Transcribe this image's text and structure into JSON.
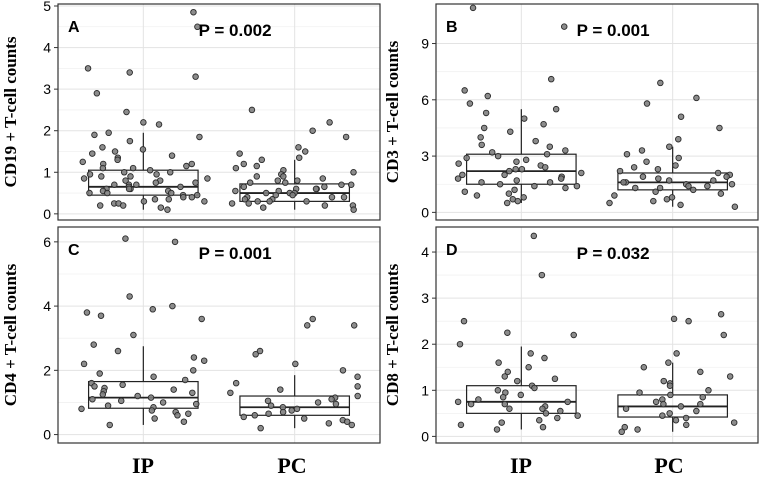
{
  "chart_data": [
    {
      "type": "box",
      "panel_label": "A",
      "ylabel": "CD19 + T-cell counts",
      "p_value": "P = 0.002",
      "categories": [
        "IP",
        "PC"
      ],
      "ylim": [
        -0.1,
        5.0
      ],
      "yticks": [
        0,
        1,
        2,
        3,
        4,
        5
      ],
      "tick_labels": [
        "0",
        "1",
        "2",
        "3",
        "4",
        "5"
      ],
      "boxes": [
        {
          "group": "IP",
          "whisker_low": 0.1,
          "q1": 0.45,
          "median": 0.65,
          "q3": 1.05,
          "whisker_high": 1.95
        },
        {
          "group": "PC",
          "whisker_low": 0.1,
          "q1": 0.3,
          "median": 0.5,
          "q3": 0.72,
          "whisker_high": 1.3
        }
      ],
      "points": [
        {
          "group": "IP",
          "values": [
            4.85,
            4.5,
            3.5,
            3.4,
            3.3,
            2.9,
            2.45,
            2.2,
            2.15,
            1.95,
            1.9,
            1.85,
            1.75,
            1.6,
            1.55,
            1.5,
            1.45,
            1.4,
            1.35,
            1.3,
            1.25,
            1.2,
            1.2,
            1.15,
            1.1,
            1.1,
            1.05,
            1.0,
            1.0,
            0.95,
            0.95,
            0.9,
            0.9,
            0.85,
            0.85,
            0.8,
            0.8,
            0.75,
            0.75,
            0.7,
            0.7,
            0.7,
            0.65,
            0.65,
            0.6,
            0.6,
            0.6,
            0.55,
            0.55,
            0.5,
            0.5,
            0.5,
            0.45,
            0.45,
            0.4,
            0.4,
            0.35,
            0.35,
            0.3,
            0.3,
            0.25,
            0.25,
            0.2,
            0.2,
            0.15,
            0.1
          ]
        },
        {
          "group": "PC",
          "values": [
            2.5,
            2.2,
            2.0,
            1.85,
            1.6,
            1.5,
            1.45,
            1.35,
            1.3,
            1.2,
            1.15,
            1.1,
            1.05,
            1.0,
            0.95,
            0.9,
            0.9,
            0.85,
            0.8,
            0.8,
            0.75,
            0.75,
            0.7,
            0.7,
            0.65,
            0.65,
            0.6,
            0.6,
            0.6,
            0.55,
            0.55,
            0.5,
            0.5,
            0.5,
            0.45,
            0.45,
            0.4,
            0.4,
            0.4,
            0.35,
            0.35,
            0.3,
            0.3,
            0.3,
            0.25,
            0.25,
            0.2,
            0.2,
            0.15,
            0.1
          ]
        }
      ]
    },
    {
      "type": "box",
      "panel_label": "B",
      "ylabel": "CD3 + T-cell counts",
      "p_value": "P = 0.001",
      "categories": [
        "IP",
        "PC"
      ],
      "ylim": [
        -0.3,
        11.0
      ],
      "yticks": [
        0,
        3,
        6,
        9
      ],
      "tick_labels": [
        "0",
        "3",
        "6",
        "9"
      ],
      "boxes": [
        {
          "group": "IP",
          "whisker_low": 0.5,
          "q1": 1.5,
          "median": 2.2,
          "q3": 3.1,
          "whisker_high": 5.5
        },
        {
          "group": "PC",
          "whisker_low": 0.3,
          "q1": 1.2,
          "median": 1.6,
          "q3": 2.1,
          "whisker_high": 3.5
        }
      ],
      "points": [
        {
          "group": "IP",
          "values": [
            10.9,
            9.9,
            7.1,
            6.5,
            6.2,
            5.8,
            5.5,
            5.3,
            5.0,
            4.7,
            4.5,
            4.3,
            4.0,
            3.8,
            3.6,
            3.5,
            3.3,
            3.2,
            3.1,
            3.0,
            2.9,
            2.8,
            2.7,
            2.6,
            2.5,
            2.4,
            2.3,
            2.3,
            2.2,
            2.1,
            2.0,
            2.0,
            1.9,
            1.8,
            1.8,
            1.7,
            1.6,
            1.6,
            1.5,
            1.4,
            1.4,
            1.3,
            1.2,
            1.1,
            1.0,
            0.9,
            0.8,
            0.7,
            0.6,
            0.5
          ]
        },
        {
          "group": "PC",
          "values": [
            6.9,
            6.1,
            5.8,
            5.1,
            4.5,
            3.9,
            3.5,
            3.3,
            3.1,
            2.9,
            2.7,
            2.5,
            2.4,
            2.3,
            2.2,
            2.1,
            2.0,
            1.9,
            1.9,
            1.8,
            1.7,
            1.7,
            1.6,
            1.6,
            1.5,
            1.5,
            1.4,
            1.4,
            1.3,
            1.3,
            1.2,
            1.1,
            1.0,
            0.9,
            0.8,
            0.7,
            0.6,
            0.5,
            0.4,
            0.3
          ]
        }
      ]
    },
    {
      "type": "box",
      "panel_label": "C",
      "ylabel": "CD4 + T-cell counts",
      "p_value": "P = 0.001",
      "categories": [
        "IP",
        "PC"
      ],
      "ylim": [
        -0.2,
        6.4
      ],
      "yticks": [
        0,
        2,
        4,
        6
      ],
      "tick_labels": [
        "0",
        "2",
        "4",
        "6"
      ],
      "boxes": [
        {
          "group": "IP",
          "whisker_low": 0.3,
          "q1": 0.82,
          "median": 1.15,
          "q3": 1.65,
          "whisker_high": 2.75
        },
        {
          "group": "PC",
          "whisker_low": 0.2,
          "q1": 0.6,
          "median": 0.85,
          "q3": 1.2,
          "whisker_high": 1.85
        }
      ],
      "points": [
        {
          "group": "IP",
          "values": [
            6.1,
            6.0,
            4.3,
            4.0,
            3.9,
            3.8,
            3.7,
            3.6,
            3.1,
            2.8,
            2.6,
            2.4,
            2.3,
            2.2,
            2.0,
            1.9,
            1.8,
            1.7,
            1.6,
            1.55,
            1.5,
            1.45,
            1.4,
            1.35,
            1.3,
            1.25,
            1.2,
            1.15,
            1.1,
            1.05,
            1.0,
            0.95,
            0.9,
            0.85,
            0.8,
            0.75,
            0.7,
            0.65,
            0.6,
            0.5,
            0.4,
            0.3
          ]
        },
        {
          "group": "PC",
          "values": [
            3.6,
            3.4,
            3.4,
            2.6,
            2.5,
            2.2,
            2.0,
            1.8,
            1.6,
            1.5,
            1.4,
            1.3,
            1.2,
            1.15,
            1.1,
            1.05,
            1.0,
            0.95,
            0.9,
            0.85,
            0.8,
            0.75,
            0.7,
            0.65,
            0.6,
            0.55,
            0.5,
            0.45,
            0.4,
            0.35,
            0.3,
            0.2
          ]
        }
      ]
    },
    {
      "type": "box",
      "panel_label": "D",
      "ylabel": "CD8 + T-cell counts",
      "p_value": "P = 0.032",
      "categories": [
        "IP",
        "PC"
      ],
      "ylim": [
        -0.1,
        4.5
      ],
      "yticks": [
        0,
        1,
        2,
        3,
        4
      ],
      "tick_labels": [
        "0",
        "1",
        "2",
        "3",
        "4"
      ],
      "boxes": [
        {
          "group": "IP",
          "whisker_low": 0.15,
          "q1": 0.5,
          "median": 0.75,
          "q3": 1.1,
          "whisker_high": 1.95
        },
        {
          "group": "PC",
          "whisker_low": 0.1,
          "q1": 0.42,
          "median": 0.65,
          "q3": 0.9,
          "whisker_high": 1.6
        }
      ],
      "points": [
        {
          "group": "IP",
          "values": [
            4.35,
            3.5,
            2.5,
            2.25,
            2.2,
            2.0,
            1.8,
            1.7,
            1.6,
            1.5,
            1.4,
            1.3,
            1.25,
            1.2,
            1.1,
            1.05,
            1.0,
            0.95,
            0.9,
            0.85,
            0.8,
            0.75,
            0.75,
            0.7,
            0.7,
            0.65,
            0.6,
            0.6,
            0.55,
            0.5,
            0.45,
            0.4,
            0.35,
            0.3,
            0.25,
            0.2,
            0.15
          ]
        },
        {
          "group": "PC",
          "values": [
            2.65,
            2.55,
            2.5,
            2.2,
            1.8,
            1.6,
            1.5,
            1.4,
            1.3,
            1.2,
            1.15,
            1.1,
            1.0,
            0.95,
            0.9,
            0.85,
            0.8,
            0.75,
            0.7,
            0.7,
            0.65,
            0.6,
            0.55,
            0.5,
            0.45,
            0.4,
            0.35,
            0.3,
            0.25,
            0.2,
            0.15,
            0.1
          ]
        }
      ]
    }
  ],
  "x_categories": [
    "IP",
    "PC"
  ],
  "colors": {
    "point_fill": "#808080",
    "point_stroke": "#2b2b2b",
    "grid": "#e3e3e3",
    "frame": "#333333",
    "box_stroke": "#222222"
  }
}
